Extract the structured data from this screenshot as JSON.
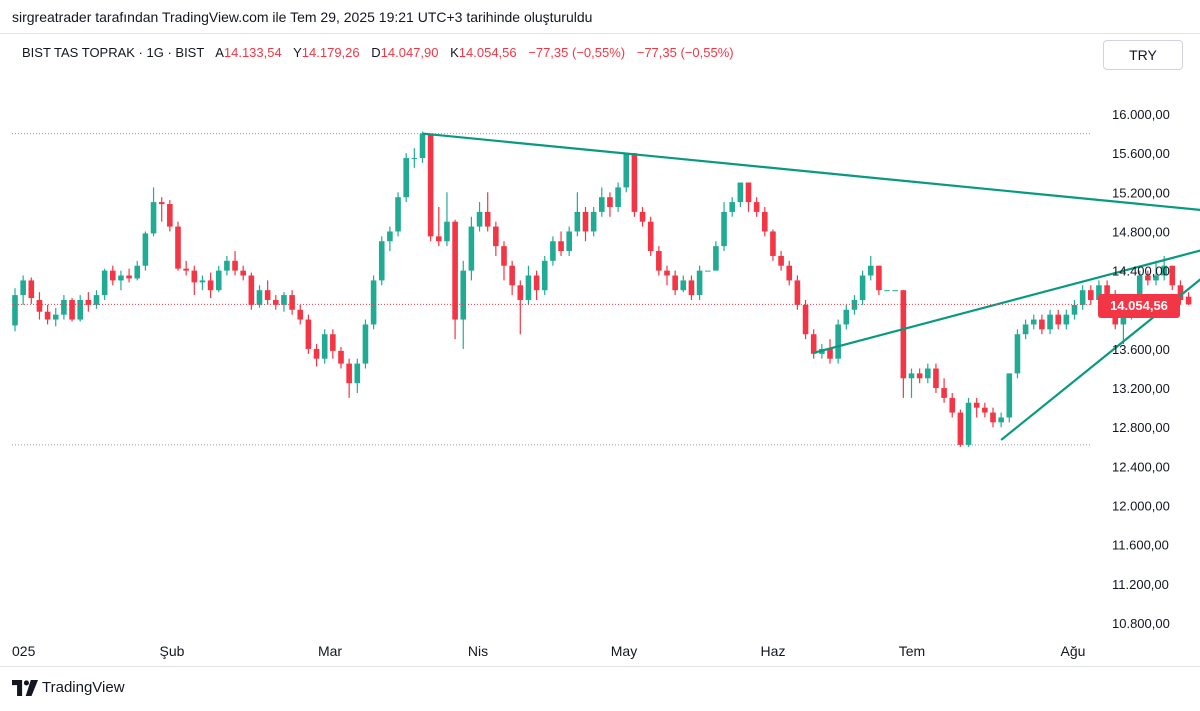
{
  "header": {
    "caption": "sirgreatrader tarafından TradingView.com ile Tem 29, 2025 19:21 UTC+3 tarihinde oluşturuldu"
  },
  "legend": {
    "symbol": "BIST TAS TOPRAK · 1G · BIST",
    "open_label": "A",
    "open": "14.133,54",
    "high_label": "Y",
    "high": "14.179,26",
    "low_label": "D",
    "low": "14.047,90",
    "close_label": "K",
    "close": "14.054,56",
    "change": "−77,35 (−0,55%)",
    "change_repeat": "−77,35 (−0,55%)"
  },
  "currency": "TRY",
  "price_badge": "14.054,56",
  "footer": {
    "brand": "TradingView",
    "logo_icon": "tradingview-logo-icon"
  },
  "colors": {
    "up": "#22ab94",
    "down": "#f23645",
    "trend": "#089981",
    "grid_dots": "#9598a1",
    "text": "#131722"
  },
  "chart_data": {
    "type": "candlestick",
    "x_ticks": [
      "025",
      "Şub",
      "Mar",
      "Nis",
      "May",
      "Haz",
      "Tem",
      "Ağu"
    ],
    "y_ticks": [
      "16.000,00",
      "15.600,00",
      "15.200,00",
      "14.800,00",
      "14.400,00",
      "14.000,00",
      "13.600,00",
      "13.200,00",
      "12.800,00",
      "12.400,00",
      "12.000,00",
      "11.600,00",
      "11.200,00",
      "10.800,00"
    ],
    "y_tick_values": [
      16000,
      15600,
      15200,
      14800,
      14400,
      14000,
      13600,
      13200,
      12800,
      12400,
      12000,
      11600,
      11200,
      10800
    ],
    "ylim": [
      10600,
      16800
    ],
    "current_price": 14054.56,
    "horizontal_levels": [
      15800,
      12620
    ],
    "candles": [
      [
        13840,
        14150,
        14220,
        13780
      ],
      [
        14150,
        14300,
        14350,
        14050
      ],
      [
        14300,
        14120,
        14330,
        14060
      ],
      [
        14100,
        13980,
        14180,
        13900
      ],
      [
        13980,
        13900,
        14050,
        13850
      ],
      [
        13900,
        13950,
        14020,
        13830
      ],
      [
        13950,
        14100,
        14150,
        13900
      ],
      [
        14100,
        13900,
        14120,
        13880
      ],
      [
        13900,
        14100,
        14150,
        13880
      ],
      [
        14100,
        14050,
        14180,
        13980
      ],
      [
        14050,
        14150,
        14200,
        14010
      ],
      [
        14150,
        14400,
        14420,
        14100
      ],
      [
        14400,
        14300,
        14450,
        14250
      ],
      [
        14300,
        14350,
        14400,
        14200
      ],
      [
        14350,
        14320,
        14420,
        14280
      ],
      [
        14320,
        14450,
        14500,
        14300
      ],
      [
        14450,
        14780,
        14800,
        14400
      ],
      [
        14780,
        15100,
        15250,
        14750
      ],
      [
        15100,
        15080,
        15150,
        14900
      ],
      [
        15080,
        14850,
        15120,
        14800
      ],
      [
        14850,
        14420,
        14900,
        14400
      ],
      [
        14420,
        14400,
        14500,
        14350
      ],
      [
        14400,
        14280,
        14450,
        14150
      ],
      [
        14280,
        14300,
        14350,
        14200
      ],
      [
        14300,
        14200,
        14380,
        14120
      ],
      [
        14200,
        14400,
        14450,
        14180
      ],
      [
        14400,
        14500,
        14550,
        14350
      ],
      [
        14500,
        14400,
        14600,
        14350
      ],
      [
        14400,
        14350,
        14450,
        14300
      ],
      [
        14350,
        14050,
        14380,
        14000
      ],
      [
        14050,
        14200,
        14250,
        14020
      ],
      [
        14200,
        14100,
        14300,
        14050
      ],
      [
        14100,
        14050,
        14150,
        14000
      ],
      [
        14050,
        14150,
        14180,
        13980
      ],
      [
        14150,
        14000,
        14200,
        13950
      ],
      [
        14000,
        13900,
        14050,
        13850
      ],
      [
        13900,
        13600,
        13950,
        13550
      ],
      [
        13600,
        13500,
        13650,
        13420
      ],
      [
        13500,
        13750,
        13800,
        13450
      ],
      [
        13750,
        13580,
        13800,
        13500
      ],
      [
        13580,
        13450,
        13620,
        13400
      ],
      [
        13450,
        13250,
        13500,
        13100
      ],
      [
        13250,
        13450,
        13500,
        13150
      ],
      [
        13450,
        13850,
        13900,
        13400
      ],
      [
        13850,
        14300,
        14350,
        13800
      ],
      [
        14300,
        14700,
        14750,
        14250
      ],
      [
        14700,
        14800,
        14850,
        14600
      ],
      [
        14800,
        15150,
        15200,
        14750
      ],
      [
        15150,
        15550,
        15600,
        15100
      ],
      [
        15550,
        15550,
        15650,
        15450
      ],
      [
        15550,
        15800,
        15820,
        15500
      ],
      [
        15800,
        14750,
        15800,
        14700
      ],
      [
        14750,
        14700,
        15050,
        14650
      ],
      [
        14700,
        14900,
        15200,
        14650
      ],
      [
        14900,
        13900,
        14920,
        13700
      ],
      [
        13900,
        14400,
        14500,
        13600
      ],
      [
        14400,
        14850,
        14950,
        14300
      ],
      [
        14850,
        15000,
        15100,
        14800
      ],
      [
        15000,
        14850,
        15200,
        14800
      ],
      [
        14850,
        14650,
        14900,
        14550
      ],
      [
        14650,
        14450,
        14700,
        14300
      ],
      [
        14450,
        14250,
        14500,
        14150
      ],
      [
        14250,
        14100,
        14300,
        13750
      ],
      [
        14100,
        14350,
        14450,
        14050
      ],
      [
        14350,
        14200,
        14400,
        14100
      ],
      [
        14200,
        14500,
        14550,
        14150
      ],
      [
        14500,
        14700,
        14750,
        14450
      ],
      [
        14700,
        14600,
        14800,
        14550
      ],
      [
        14600,
        14800,
        14850,
        14550
      ],
      [
        14800,
        15000,
        15200,
        14750
      ],
      [
        15000,
        14800,
        15050,
        14700
      ],
      [
        14800,
        15000,
        15050,
        14750
      ],
      [
        15000,
        15150,
        15250,
        14950
      ],
      [
        15150,
        15050,
        15200,
        14950
      ],
      [
        15050,
        15250,
        15300,
        15000
      ],
      [
        15250,
        15600,
        15600,
        15200
      ],
      [
        15600,
        15000,
        15600,
        14950
      ],
      [
        15000,
        14900,
        15050,
        14850
      ],
      [
        14900,
        14600,
        14950,
        14550
      ],
      [
        14600,
        14400,
        14650,
        14350
      ],
      [
        14400,
        14350,
        14450,
        14250
      ],
      [
        14350,
        14200,
        14400,
        14150
      ],
      [
        14200,
        14300,
        14350,
        14180
      ],
      [
        14300,
        14150,
        14350,
        14100
      ],
      [
        14150,
        14400,
        14450,
        14100
      ],
      [
        14400,
        14400,
        14400,
        14400
      ],
      [
        14400,
        14650,
        14700,
        14400
      ],
      [
        14650,
        15000,
        15100,
        14600
      ],
      [
        15000,
        15100,
        15150,
        14950
      ],
      [
        15100,
        15300,
        15300,
        15050
      ],
      [
        15300,
        15100,
        15300,
        15000
      ],
      [
        15100,
        15000,
        15150,
        14950
      ],
      [
        15000,
        14800,
        15050,
        14750
      ],
      [
        14800,
        14550,
        14820,
        14500
      ],
      [
        14550,
        14450,
        14600,
        14400
      ],
      [
        14450,
        14300,
        14500,
        14250
      ],
      [
        14300,
        14050,
        14350,
        14000
      ],
      [
        14050,
        13750,
        14100,
        13700
      ],
      [
        13750,
        13550,
        13800,
        13500
      ],
      [
        13550,
        13600,
        13650,
        13500
      ],
      [
        13600,
        13500,
        13700,
        13450
      ],
      [
        13500,
        13850,
        13900,
        13450
      ],
      [
        13850,
        14000,
        14050,
        13800
      ],
      [
        14000,
        14100,
        14150,
        13950
      ],
      [
        14100,
        14350,
        14400,
        14050
      ],
      [
        14350,
        14450,
        14550,
        14300
      ],
      [
        14450,
        14200,
        14450,
        14150
      ],
      [
        14200,
        14200,
        14200,
        14200
      ],
      [
        14200,
        14200,
        14200,
        14200
      ],
      [
        14200,
        13300,
        14200,
        13100
      ],
      [
        13300,
        13350,
        13400,
        13100
      ],
      [
        13350,
        13300,
        13400,
        13250
      ],
      [
        13300,
        13400,
        13450,
        13250
      ],
      [
        13400,
        13200,
        13450,
        13150
      ],
      [
        13200,
        13100,
        13300,
        13050
      ],
      [
        13100,
        12950,
        13150,
        12900
      ],
      [
        12950,
        12620,
        12980,
        12600
      ],
      [
        12620,
        13050,
        13100,
        12600
      ],
      [
        13050,
        13000,
        13100,
        12900
      ],
      [
        13000,
        12950,
        13050,
        12900
      ],
      [
        12950,
        12850,
        13000,
        12800
      ],
      [
        12850,
        12900,
        12950,
        12800
      ],
      [
        12900,
        13350,
        13350,
        12850
      ],
      [
        13350,
        13750,
        13800,
        13300
      ],
      [
        13750,
        13850,
        13900,
        13700
      ],
      [
        13850,
        13900,
        13950,
        13800
      ],
      [
        13900,
        13800,
        13950,
        13750
      ],
      [
        13800,
        13950,
        14000,
        13750
      ],
      [
        13950,
        13850,
        14000,
        13800
      ],
      [
        13850,
        13950,
        14000,
        13800
      ],
      [
        13950,
        14050,
        14100,
        13900
      ],
      [
        14050,
        14200,
        14250,
        14000
      ],
      [
        14200,
        14100,
        14250,
        14050
      ],
      [
        14100,
        14250,
        14300,
        14050
      ],
      [
        14250,
        14150,
        14300,
        14100
      ],
      [
        14150,
        13850,
        14200,
        13800
      ],
      [
        13850,
        13950,
        14000,
        13650
      ],
      [
        13950,
        14050,
        14100,
        13900
      ],
      [
        14050,
        14350,
        14400,
        14000
      ],
      [
        14350,
        14300,
        14400,
        14250
      ],
      [
        14300,
        14350,
        14500,
        14250
      ],
      [
        14350,
        14450,
        14550,
        14300
      ],
      [
        14450,
        14250,
        14450,
        14200
      ],
      [
        14250,
        14100,
        14300,
        14050
      ],
      [
        14133.54,
        14054.56,
        14179.26,
        14047.9
      ]
    ],
    "trendlines": [
      {
        "points": [
          [
            50,
            15800
          ],
          [
            154,
            14950
          ]
        ]
      },
      {
        "points": [
          [
            98,
            13560
          ],
          [
            152,
            14750
          ]
        ]
      },
      {
        "points": [
          [
            121,
            12670
          ],
          [
            152,
            14750
          ]
        ]
      }
    ]
  }
}
